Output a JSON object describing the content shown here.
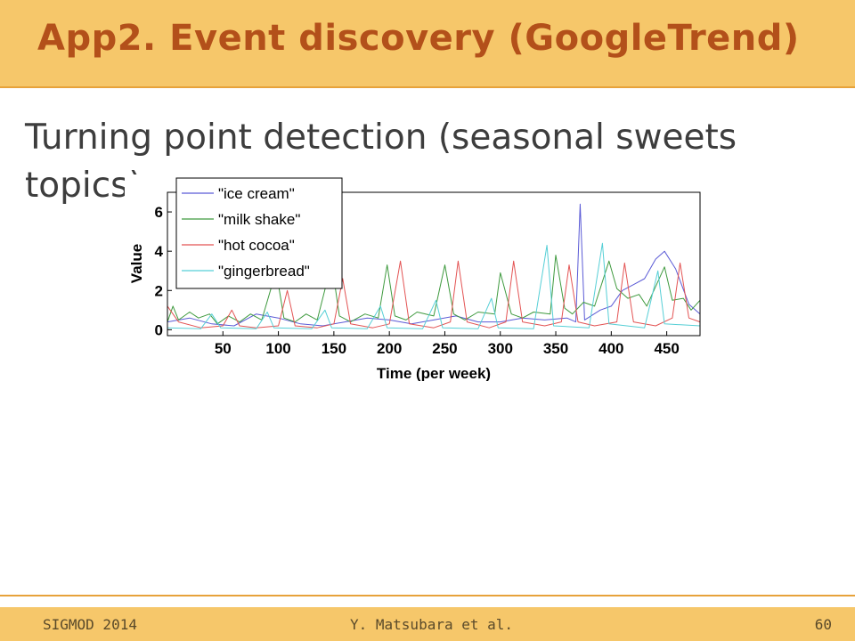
{
  "slide": {
    "title": "App2. Event discovery (GoogleTrend)",
    "subtitle": "Turning point detection (seasonal sweets topics)"
  },
  "footer": {
    "left": "SIGMOD 2014",
    "center": "Y. Matsubara et al.",
    "page": "60"
  },
  "colors": {
    "header_bg": "#f6c76a",
    "title": "#b3501a",
    "ice_cream": "#5b5bd6",
    "milk_shake": "#3f9a3f",
    "hot_cocoa": "#e35353",
    "gingerbread": "#56cfd6"
  },
  "chart_data": {
    "type": "line",
    "xlabel": "Time (per week)",
    "ylabel": "Value",
    "xlim": [
      0,
      480
    ],
    "ylim": [
      -0.3,
      7
    ],
    "xticks": [
      50,
      100,
      150,
      200,
      250,
      300,
      350,
      400,
      450
    ],
    "yticks": [
      0,
      2,
      4,
      6
    ],
    "legend_position": "top-left",
    "series": [
      {
        "name": "\"ice cream\"",
        "color": "#5b5bd6",
        "points": [
          [
            0,
            0.4
          ],
          [
            20,
            0.6
          ],
          [
            40,
            0.3
          ],
          [
            60,
            0.2
          ],
          [
            80,
            0.8
          ],
          [
            100,
            0.6
          ],
          [
            120,
            0.3
          ],
          [
            140,
            0.2
          ],
          [
            160,
            0.4
          ],
          [
            180,
            0.6
          ],
          [
            200,
            0.5
          ],
          [
            220,
            0.3
          ],
          [
            240,
            0.5
          ],
          [
            260,
            0.7
          ],
          [
            280,
            0.4
          ],
          [
            300,
            0.4
          ],
          [
            320,
            0.6
          ],
          [
            340,
            0.5
          ],
          [
            360,
            0.6
          ],
          [
            368,
            0.4
          ],
          [
            372,
            6.4
          ],
          [
            376,
            0.5
          ],
          [
            390,
            1.0
          ],
          [
            400,
            1.2
          ],
          [
            410,
            2.0
          ],
          [
            420,
            2.3
          ],
          [
            430,
            2.6
          ],
          [
            440,
            3.6
          ],
          [
            448,
            4.0
          ],
          [
            458,
            3.1
          ],
          [
            470,
            1.3
          ],
          [
            480,
            0.8
          ]
        ]
      },
      {
        "name": "\"milk shake\"",
        "color": "#3f9a3f",
        "points": [
          [
            0,
            0.4
          ],
          [
            5,
            1.2
          ],
          [
            10,
            0.5
          ],
          [
            20,
            0.9
          ],
          [
            28,
            0.6
          ],
          [
            38,
            0.8
          ],
          [
            45,
            0.3
          ],
          [
            55,
            0.7
          ],
          [
            65,
            0.4
          ],
          [
            75,
            0.8
          ],
          [
            85,
            0.5
          ],
          [
            98,
            3.0
          ],
          [
            105,
            0.6
          ],
          [
            115,
            0.4
          ],
          [
            125,
            0.8
          ],
          [
            135,
            0.5
          ],
          [
            148,
            3.4
          ],
          [
            155,
            0.7
          ],
          [
            165,
            0.4
          ],
          [
            178,
            0.8
          ],
          [
            190,
            0.6
          ],
          [
            198,
            3.3
          ],
          [
            205,
            0.7
          ],
          [
            215,
            0.5
          ],
          [
            225,
            0.9
          ],
          [
            240,
            0.7
          ],
          [
            250,
            3.3
          ],
          [
            258,
            0.8
          ],
          [
            268,
            0.5
          ],
          [
            280,
            0.9
          ],
          [
            295,
            0.8
          ],
          [
            300,
            2.9
          ],
          [
            310,
            0.8
          ],
          [
            320,
            0.6
          ],
          [
            330,
            0.9
          ],
          [
            345,
            0.8
          ],
          [
            350,
            3.8
          ],
          [
            358,
            1.1
          ],
          [
            365,
            0.8
          ],
          [
            375,
            1.4
          ],
          [
            385,
            1.2
          ],
          [
            398,
            3.5
          ],
          [
            405,
            2.1
          ],
          [
            415,
            1.6
          ],
          [
            425,
            1.8
          ],
          [
            432,
            1.2
          ],
          [
            448,
            3.2
          ],
          [
            455,
            1.5
          ],
          [
            465,
            1.6
          ],
          [
            472,
            1.0
          ],
          [
            480,
            1.5
          ]
        ]
      },
      {
        "name": "\"hot cocoa\"",
        "color": "#e35353",
        "points": [
          [
            0,
            1.2
          ],
          [
            10,
            0.4
          ],
          [
            30,
            0.1
          ],
          [
            50,
            0.2
          ],
          [
            58,
            1.0
          ],
          [
            65,
            0.2
          ],
          [
            80,
            0.1
          ],
          [
            100,
            0.2
          ],
          [
            108,
            2.0
          ],
          [
            115,
            0.2
          ],
          [
            135,
            0.1
          ],
          [
            150,
            0.3
          ],
          [
            158,
            2.6
          ],
          [
            165,
            0.3
          ],
          [
            185,
            0.1
          ],
          [
            200,
            0.3
          ],
          [
            210,
            3.5
          ],
          [
            218,
            0.3
          ],
          [
            240,
            0.1
          ],
          [
            255,
            0.4
          ],
          [
            262,
            3.5
          ],
          [
            270,
            0.4
          ],
          [
            290,
            0.1
          ],
          [
            305,
            0.4
          ],
          [
            312,
            3.5
          ],
          [
            320,
            0.4
          ],
          [
            340,
            0.2
          ],
          [
            355,
            0.4
          ],
          [
            362,
            3.3
          ],
          [
            370,
            0.4
          ],
          [
            385,
            0.2
          ],
          [
            405,
            0.4
          ],
          [
            412,
            3.4
          ],
          [
            420,
            0.4
          ],
          [
            440,
            0.2
          ],
          [
            455,
            0.6
          ],
          [
            462,
            3.4
          ],
          [
            470,
            0.6
          ],
          [
            480,
            0.4
          ]
        ]
      },
      {
        "name": "\"gingerbread\"",
        "color": "#56cfd6",
        "points": [
          [
            0,
            0.1
          ],
          [
            30,
            0.05
          ],
          [
            40,
            0.8
          ],
          [
            48,
            0.1
          ],
          [
            80,
            0.05
          ],
          [
            90,
            0.9
          ],
          [
            96,
            0.1
          ],
          [
            130,
            0.05
          ],
          [
            142,
            1.0
          ],
          [
            148,
            0.1
          ],
          [
            180,
            0.05
          ],
          [
            192,
            1.2
          ],
          [
            198,
            0.1
          ],
          [
            230,
            0.05
          ],
          [
            242,
            1.5
          ],
          [
            248,
            0.1
          ],
          [
            280,
            0.05
          ],
          [
            292,
            1.6
          ],
          [
            298,
            0.1
          ],
          [
            330,
            0.05
          ],
          [
            342,
            4.3
          ],
          [
            348,
            0.2
          ],
          [
            380,
            0.1
          ],
          [
            392,
            4.4
          ],
          [
            398,
            0.3
          ],
          [
            430,
            0.1
          ],
          [
            442,
            3.0
          ],
          [
            448,
            0.3
          ],
          [
            480,
            0.2
          ]
        ]
      }
    ]
  }
}
